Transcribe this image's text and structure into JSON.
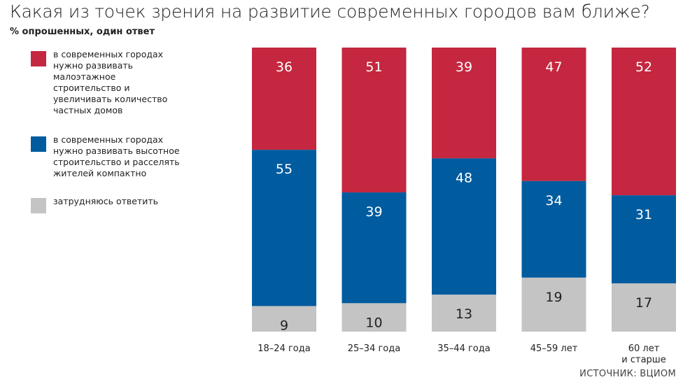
{
  "title": "Какая из точек зрения на развитие современных городов вам ближе?",
  "subtitle": "% опрошенных, один ответ",
  "source": "ИСТОЧНИК: ВЦИОМ",
  "colors": {
    "low_rise": "#c4273f",
    "high_rise": "#005b9f",
    "undecided": "#c4c4c4"
  },
  "legend": [
    {
      "label": "в современных городах нужно развивать малоэтажное строительство и увеличивать количество частных домов",
      "lines": [
        "в современных городах",
        "нужно развивать",
        "малоэтажное",
        "строительство и",
        "увеличивать количество",
        "частных домов"
      ]
    },
    {
      "label": "в современных городах нужно развивать высотное строительство и расселять жителей компактно",
      "lines": [
        "в современных городах",
        "нужно развивать высотное",
        "строительство и расселять",
        "жителей компактно"
      ]
    },
    {
      "label": "затрудняюсь ответить",
      "lines": [
        "затрудняюсь ответить"
      ]
    }
  ],
  "chart_data": {
    "type": "bar",
    "stacked": true,
    "categories": [
      "18–24 года",
      "25–34 года",
      "35–44 года",
      "45–59 лет",
      "60 лет\nи старше"
    ],
    "series": [
      {
        "name": "в современных городах нужно развивать малоэтажное строительство и увеличивать количество частных домов",
        "values": [
          36,
          51,
          39,
          47,
          52
        ]
      },
      {
        "name": "в современных городах нужно развивать высотное строительство и расселять жителей компактно",
        "values": [
          55,
          39,
          48,
          34,
          31
        ]
      },
      {
        "name": "затрудняюсь ответить",
        "values": [
          9,
          10,
          13,
          19,
          17
        ]
      }
    ],
    "ylim": [
      0,
      100
    ],
    "grid": false,
    "legend_position": "left"
  }
}
